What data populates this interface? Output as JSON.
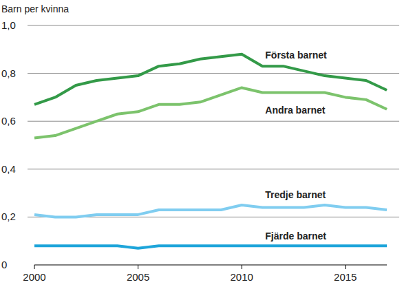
{
  "chart_data": {
    "type": "line",
    "y_label": "Barn per kvinna",
    "x": [
      2000,
      2001,
      2002,
      2003,
      2004,
      2005,
      2006,
      2007,
      2008,
      2009,
      2010,
      2011,
      2012,
      2013,
      2014,
      2015,
      2016,
      2017
    ],
    "series": [
      {
        "name": "Första barnet",
        "color": "#339a48",
        "values": [
          0.67,
          0.7,
          0.75,
          0.77,
          0.78,
          0.79,
          0.83,
          0.84,
          0.86,
          0.87,
          0.88,
          0.83,
          0.83,
          0.81,
          0.79,
          0.78,
          0.77,
          0.73
        ]
      },
      {
        "name": "Andra barnet",
        "color": "#7cc36c",
        "values": [
          0.53,
          0.54,
          0.57,
          0.6,
          0.63,
          0.64,
          0.67,
          0.67,
          0.68,
          0.71,
          0.74,
          0.72,
          0.72,
          0.72,
          0.72,
          0.7,
          0.69,
          0.65
        ]
      },
      {
        "name": "Tredje barnet",
        "color": "#80cdf0",
        "values": [
          0.21,
          0.2,
          0.2,
          0.21,
          0.21,
          0.21,
          0.23,
          0.23,
          0.23,
          0.23,
          0.25,
          0.24,
          0.24,
          0.24,
          0.25,
          0.24,
          0.24,
          0.23
        ]
      },
      {
        "name": "Fjärde barnet",
        "color": "#1ea5da",
        "values": [
          0.08,
          0.08,
          0.08,
          0.08,
          0.08,
          0.07,
          0.08,
          0.08,
          0.08,
          0.08,
          0.08,
          0.08,
          0.08,
          0.08,
          0.08,
          0.08,
          0.08,
          0.08
        ]
      }
    ],
    "xlim": [
      2000,
      2017
    ],
    "xticks": [
      2000,
      2005,
      2010,
      2015
    ],
    "ylim": [
      0,
      1
    ],
    "yticks": [
      0,
      {
        "value": 0.2,
        "label": "0,2"
      },
      {
        "value": 0.4,
        "label": "0,4"
      },
      {
        "value": 0.6,
        "label": "0,6"
      },
      {
        "value": 0.8,
        "label": "0,8"
      },
      {
        "value": 1,
        "label": "1,0"
      }
    ],
    "grid": true
  }
}
